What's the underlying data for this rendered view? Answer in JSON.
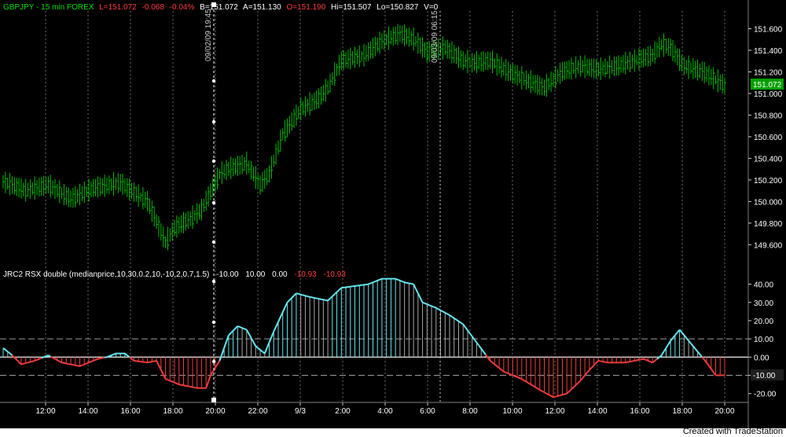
{
  "header": {
    "symbol": "GBPJPY - 15 min  FOREX",
    "last": "L=151.072",
    "net": "-0.068",
    "pct": "-0.04%",
    "bid": "B=151.072",
    "ask": "A=151.130",
    "open": "O=151.190",
    "high": "Hi=151.507",
    "low": "Lo=150.827",
    "vol": "V=0"
  },
  "indicator_header": {
    "name": "JRC2 RSX double (medianprice,10,30,0.2,10,-10,2,0.7,1.5)",
    "v1": "-10.00",
    "v2": "10.00",
    "v3": "0.00",
    "v4": "-10.93",
    "v5": "-10.93"
  },
  "markers": {
    "left_date": "09/02/09 19:45",
    "right_date": "09/03/09 06:15"
  },
  "price_badge": "151.072",
  "value_badge": "-10.00",
  "footer": "Created with TradeStation",
  "colors": {
    "up_bar": "#00c000",
    "rsx_up": "#66e8f0",
    "rsx_down": "#f03c3c",
    "rsx_fade": "#a8a8a8",
    "badge": "#00a000",
    "text_white": "#ffffff",
    "text_red": "#ff3c3c"
  },
  "chart_data": [
    {
      "type": "bar",
      "subtype": "ohlc",
      "title": "GBPJPY - 15 min  FOREX",
      "xlabel": "",
      "ylabel": "",
      "ylim": [
        149.45,
        151.72
      ],
      "yticks": [
        "151.600",
        "151.400",
        "151.200",
        "151.000",
        "150.800",
        "150.600",
        "150.400",
        "150.200",
        "150.000",
        "149.800",
        "149.600"
      ],
      "xticks": [
        "12:00",
        "14:00",
        "16:00",
        "18:00",
        "20:00",
        "22:00",
        "9/3",
        "2:00",
        "4:00",
        "6:00",
        "8:00",
        "10:00",
        "12:00",
        "14:00",
        "16:00",
        "18:00",
        "20:00"
      ],
      "grid": "vertical",
      "anchors": [
        [
          0,
          150.18
        ],
        [
          10,
          150.1
        ],
        [
          20,
          150.15
        ],
        [
          30,
          150.02
        ],
        [
          40,
          150.12
        ],
        [
          52,
          150.17
        ],
        [
          60,
          150.05
        ],
        [
          64,
          150.0
        ],
        [
          72,
          149.62
        ],
        [
          76,
          149.75
        ],
        [
          84,
          149.85
        ],
        [
          88,
          149.92
        ],
        [
          96,
          150.25
        ],
        [
          100,
          150.3
        ],
        [
          108,
          150.35
        ],
        [
          114,
          150.15
        ],
        [
          118,
          150.25
        ],
        [
          124,
          150.62
        ],
        [
          132,
          150.85
        ],
        [
          140,
          150.95
        ],
        [
          144,
          151.05
        ],
        [
          150,
          151.3
        ],
        [
          160,
          151.35
        ],
        [
          168,
          151.48
        ],
        [
          176,
          151.55
        ],
        [
          182,
          151.5
        ],
        [
          188,
          151.38
        ],
        [
          196,
          151.42
        ],
        [
          204,
          151.3
        ],
        [
          208,
          151.28
        ],
        [
          216,
          151.3
        ],
        [
          224,
          151.2
        ],
        [
          232,
          151.12
        ],
        [
          240,
          151.05
        ],
        [
          248,
          151.2
        ],
        [
          256,
          151.25
        ],
        [
          264,
          151.22
        ],
        [
          272,
          151.25
        ],
        [
          280,
          151.3
        ],
        [
          288,
          151.35
        ],
        [
          292,
          151.45
        ],
        [
          296,
          151.42
        ],
        [
          302,
          151.25
        ],
        [
          310,
          151.2
        ],
        [
          318,
          151.1
        ],
        [
          320,
          151.07
        ]
      ],
      "bars_count": 321
    },
    {
      "type": "bar",
      "subtype": "histogram+line",
      "title": "JRC2 RSX double (medianprice,10,30,0.2,10,-10,2,0.7,1.5)",
      "ylim": [
        -24,
        45
      ],
      "yticks": [
        "40.00",
        "30.00",
        "20.00",
        "10.00",
        "0.00",
        "-10.00",
        "-20.00"
      ],
      "reference_lines": [
        10,
        0,
        -10
      ],
      "anchors": [
        [
          0,
          5
        ],
        [
          4,
          1
        ],
        [
          8,
          -4
        ],
        [
          14,
          -2
        ],
        [
          20,
          1
        ],
        [
          26,
          -3
        ],
        [
          34,
          -5
        ],
        [
          42,
          -1
        ],
        [
          46,
          0
        ],
        [
          50,
          2
        ],
        [
          54,
          2
        ],
        [
          58,
          -2
        ],
        [
          64,
          -3
        ],
        [
          68,
          -2
        ],
        [
          72,
          -12
        ],
        [
          78,
          -15
        ],
        [
          86,
          -17
        ],
        [
          90,
          -17
        ],
        [
          92,
          -10
        ],
        [
          96,
          -2
        ],
        [
          100,
          12
        ],
        [
          104,
          17
        ],
        [
          108,
          15
        ],
        [
          112,
          6
        ],
        [
          116,
          2
        ],
        [
          120,
          14
        ],
        [
          126,
          30
        ],
        [
          130,
          35
        ],
        [
          136,
          33
        ],
        [
          144,
          31
        ],
        [
          150,
          38
        ],
        [
          156,
          39
        ],
        [
          162,
          40
        ],
        [
          168,
          43
        ],
        [
          174,
          43
        ],
        [
          178,
          41
        ],
        [
          182,
          40
        ],
        [
          186,
          30
        ],
        [
          192,
          27
        ],
        [
          198,
          23
        ],
        [
          204,
          18
        ],
        [
          210,
          8
        ],
        [
          216,
          -2
        ],
        [
          222,
          -8
        ],
        [
          230,
          -12
        ],
        [
          238,
          -18
        ],
        [
          244,
          -22
        ],
        [
          250,
          -20
        ],
        [
          256,
          -13
        ],
        [
          260,
          -7
        ],
        [
          264,
          -2
        ],
        [
          268,
          -3
        ],
        [
          276,
          -3
        ],
        [
          284,
          -1
        ],
        [
          288,
          -3
        ],
        [
          292,
          1
        ],
        [
          296,
          9
        ],
        [
          300,
          15
        ],
        [
          304,
          9
        ],
        [
          308,
          3
        ],
        [
          312,
          -3
        ],
        [
          316,
          -10
        ],
        [
          320,
          -10
        ]
      ],
      "bars_count": 321
    }
  ]
}
